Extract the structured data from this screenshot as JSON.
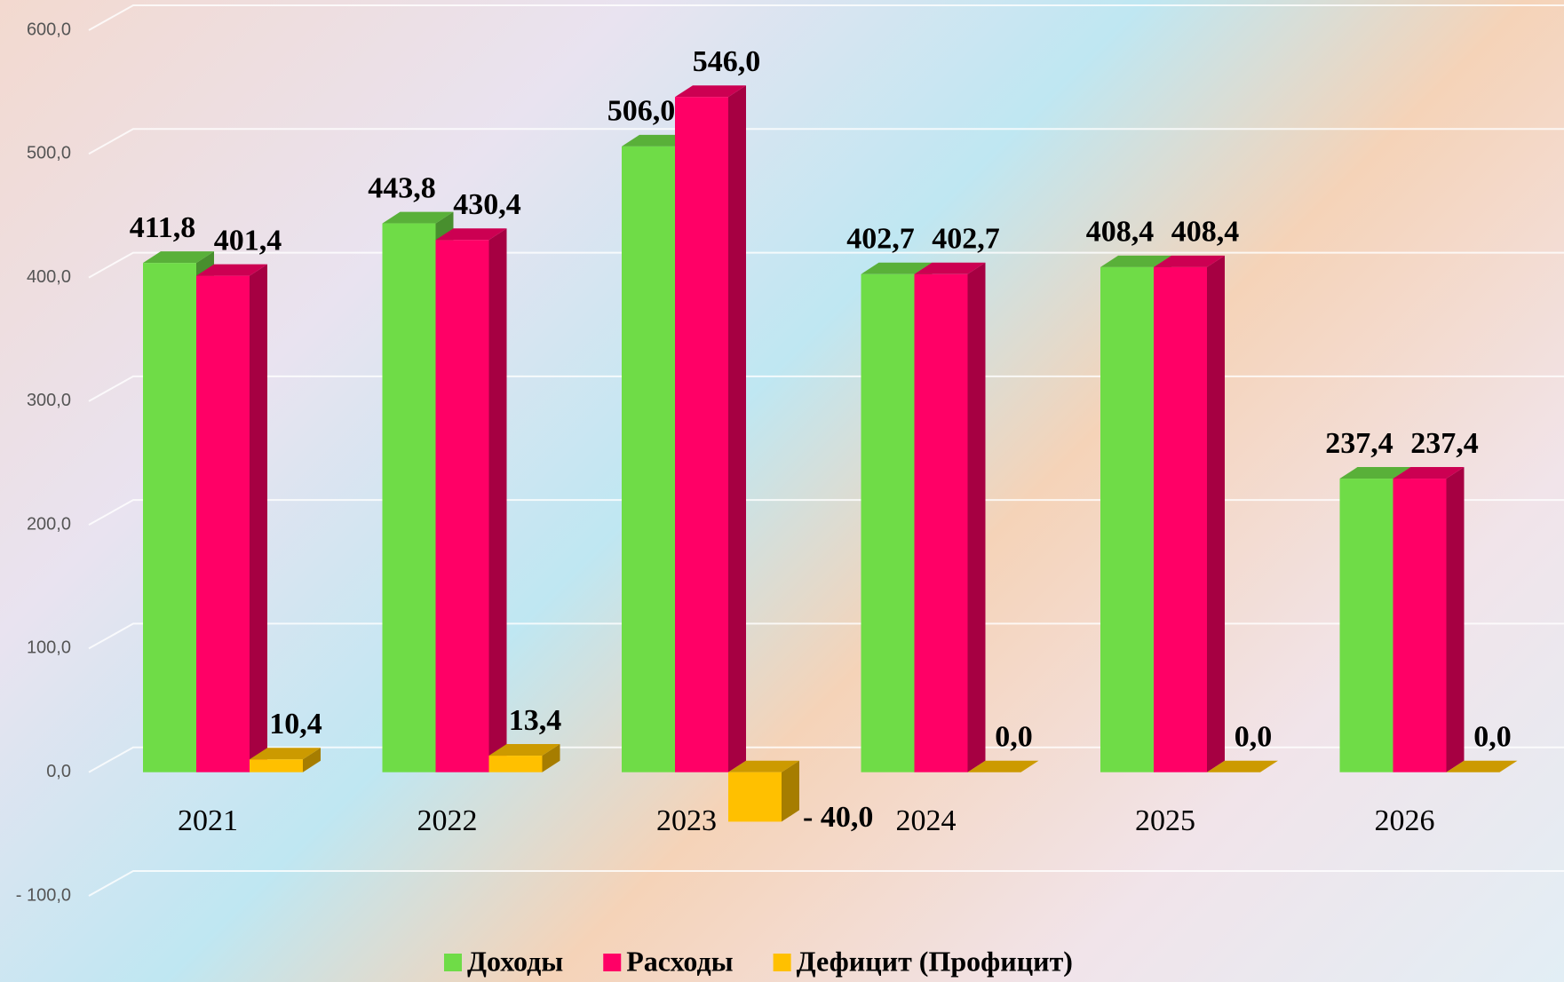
{
  "chart_data": {
    "type": "bar3d",
    "categories": [
      "2021",
      "2022",
      "2023",
      "2024",
      "2025",
      "2026"
    ],
    "series": [
      {
        "name": "Доходы",
        "color": "#6fdc47",
        "values": [
          411.8,
          443.8,
          506.0,
          402.7,
          408.4,
          237.4
        ],
        "value_labels": [
          "411,8",
          "443,8",
          "506,0",
          "402,7",
          "408,4",
          "237,4"
        ]
      },
      {
        "name": "Расходы",
        "color": "#ff0066",
        "values": [
          401.4,
          430.4,
          546.0,
          402.7,
          408.4,
          237.4
        ],
        "value_labels": [
          "401,4",
          "430,4",
          "546,0",
          "402,7",
          "408,4",
          "237,4"
        ]
      },
      {
        "name": "Дефицит (Профицит)",
        "color": "#ffc000",
        "values": [
          10.4,
          13.4,
          -40.0,
          0.0,
          0.0,
          0.0
        ],
        "value_labels": [
          "10,4",
          "13,4",
          "- 40,0",
          "0,0",
          "0,0",
          "0,0"
        ]
      }
    ],
    "ylim": [
      -100,
      600
    ],
    "yticks": [
      {
        "value": -100,
        "label": "- 100,0"
      },
      {
        "value": 0,
        "label": "0,0"
      },
      {
        "value": 100,
        "label": "100,0"
      },
      {
        "value": 200,
        "label": "200,0"
      },
      {
        "value": 300,
        "label": "300,0"
      },
      {
        "value": 400,
        "label": "400,0"
      },
      {
        "value": 500,
        "label": "500,0"
      },
      {
        "value": 600,
        "label": "600,0"
      }
    ],
    "grid": true,
    "legend": "bottom"
  }
}
